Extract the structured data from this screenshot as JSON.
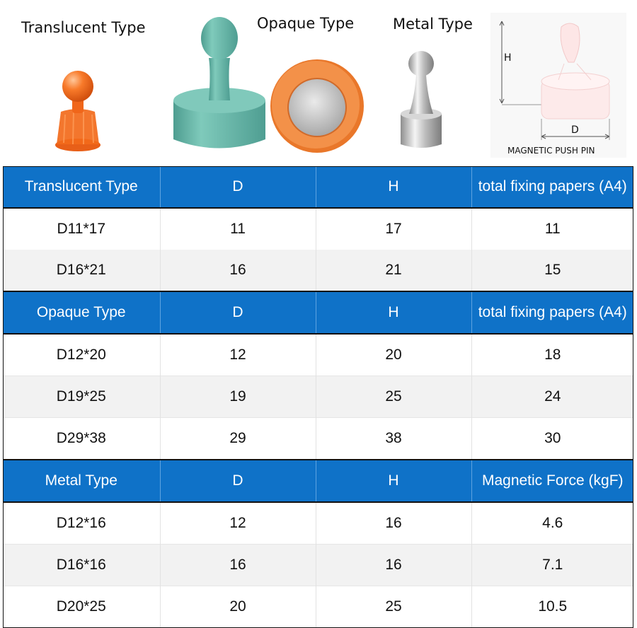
{
  "captions": {
    "translucent": "Translucent Type",
    "opaque": "Opaque Type",
    "metal": "Metal Type"
  },
  "diagram": {
    "h_label": "H",
    "d_label": "D",
    "caption": "MAGNETIC PUSH PIN"
  },
  "colors": {
    "header_blue": "#0f72c8",
    "translucent_orange": "#f26a1b",
    "opaque_teal": "#6cbcae",
    "opaque_orange": "#f08a3a",
    "metal_silver": "#c8c8c8"
  },
  "sections": [
    {
      "header": [
        "Translucent Type",
        "D",
        "H",
        "total fixing papers (A4)"
      ],
      "rows": [
        [
          "D11*17",
          "11",
          "17",
          "11"
        ],
        [
          "D16*21",
          "16",
          "21",
          "15"
        ]
      ]
    },
    {
      "header": [
        "Opaque Type",
        "D",
        "H",
        "total fixing papers (A4)"
      ],
      "rows": [
        [
          "D12*20",
          "12",
          "20",
          "18"
        ],
        [
          "D19*25",
          "19",
          "25",
          "24"
        ],
        [
          "D29*38",
          "29",
          "38",
          "30"
        ]
      ]
    },
    {
      "header": [
        "Metal Type",
        "D",
        "H",
        "Magnetic Force (kgF)"
      ],
      "rows": [
        [
          "D12*16",
          "12",
          "16",
          "4.6"
        ],
        [
          "D16*16",
          "16",
          "16",
          "7.1"
        ],
        [
          "D20*25",
          "20",
          "25",
          "10.5"
        ]
      ]
    }
  ]
}
